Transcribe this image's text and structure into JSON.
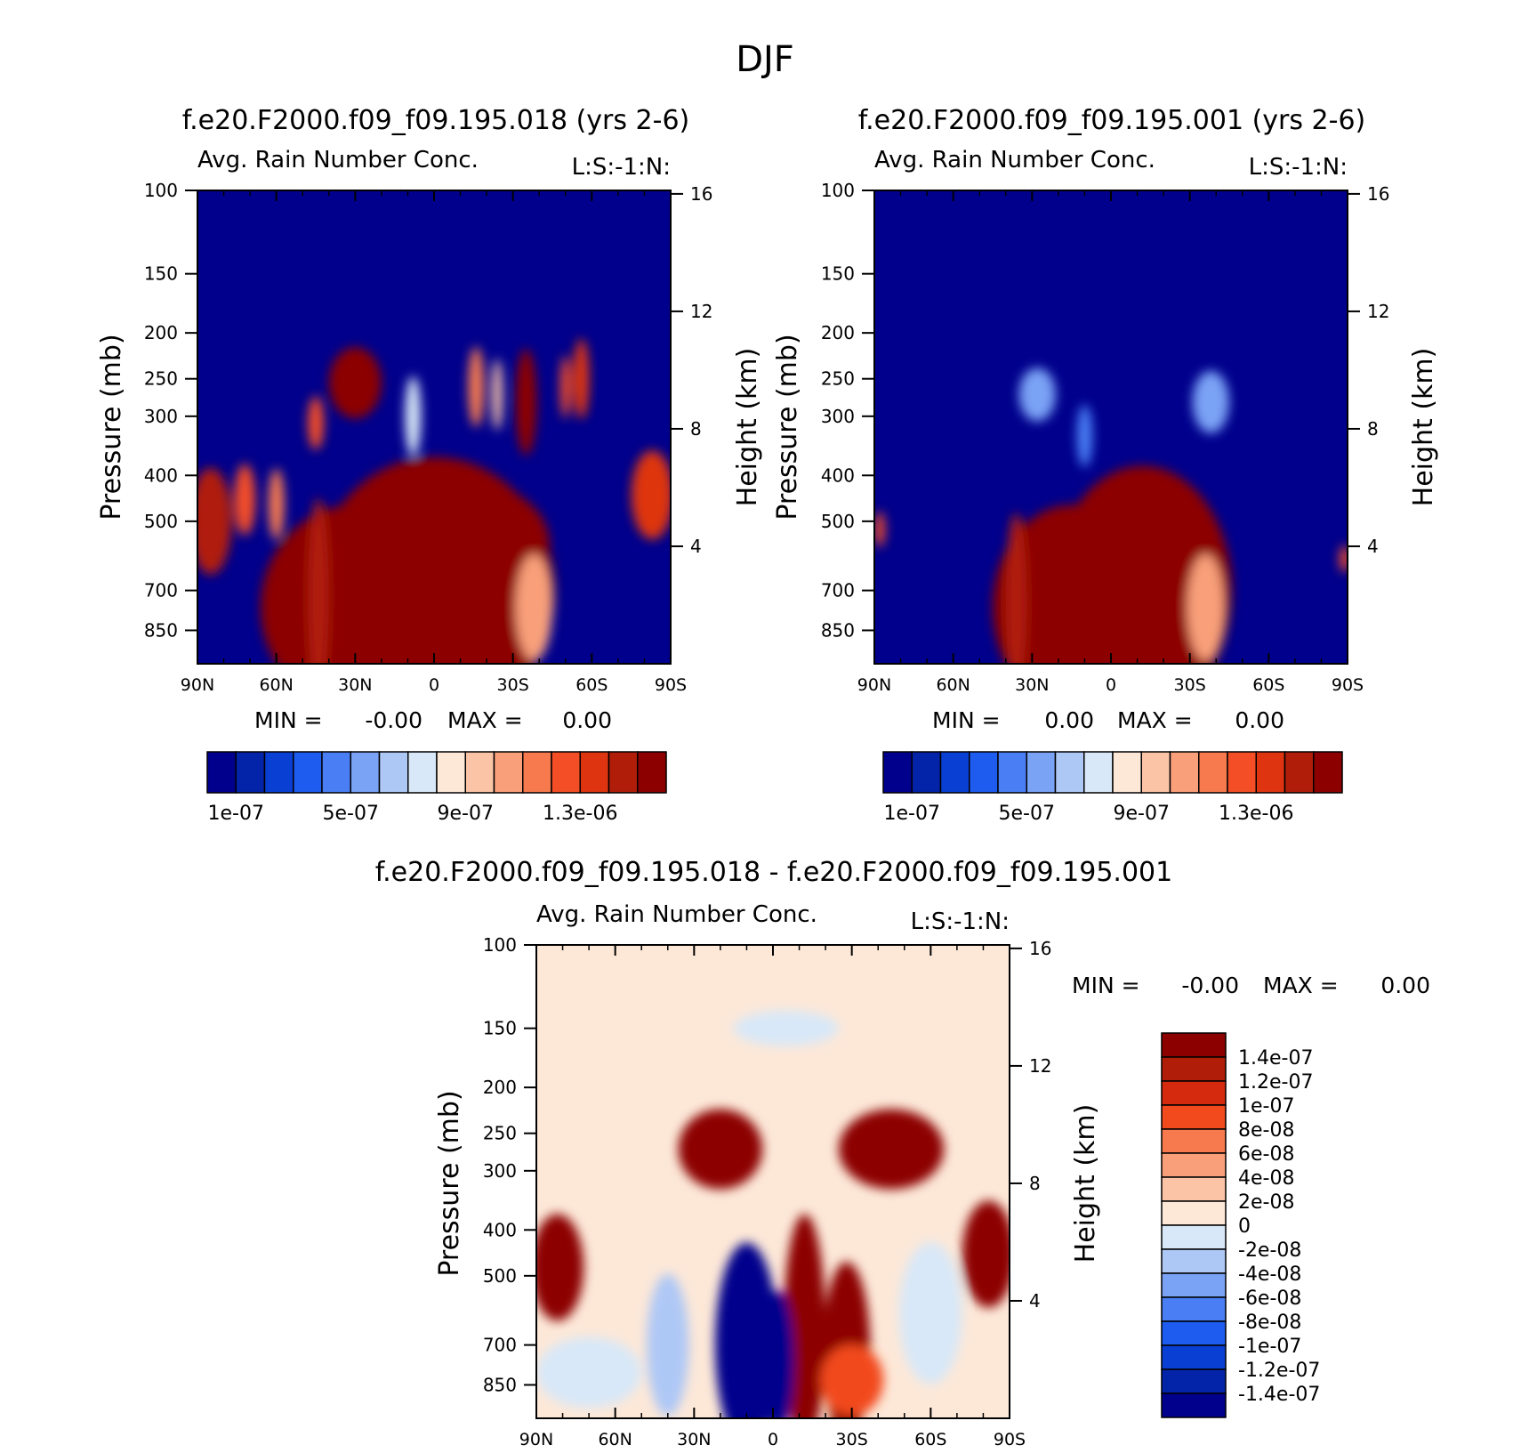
{
  "page_title": "DJF",
  "colors": {
    "seq": [
      "#00008c",
      "#0323a8",
      "#0a3fd4",
      "#1e5cf0",
      "#4a7ef5",
      "#7aa2f5",
      "#aec8f6",
      "#d8e8f8",
      "#fde8d8",
      "#fbc4a6",
      "#f9a07a",
      "#f77a4e",
      "#f44e26",
      "#de3410",
      "#b01e0a",
      "#8c0000"
    ],
    "div": [
      "#8c0000",
      "#b01e0a",
      "#d62a0e",
      "#f24a1c",
      "#f77a4e",
      "#f9a07a",
      "#fbc4a6",
      "#fde8d8",
      "#d8e8f8",
      "#aec8f6",
      "#7aa2f5",
      "#4a7ef5",
      "#1e5cf0",
      "#0a3fd4",
      "#0323a8",
      "#00008c"
    ]
  },
  "chart_data": [
    {
      "type": "heatmap",
      "title": "f.e20.F2000.f09_f09.195.018 (yrs 2-6)",
      "subtitle": "Avg. Rain Number Conc.",
      "tag": "L:S:-1:N:",
      "ylabel": "Pressure (mb)",
      "ylabel_right": "Height (km)",
      "x_ticks": [
        "90N",
        "60N",
        "30N",
        "0",
        "30S",
        "60S",
        "90S"
      ],
      "y_ticks": [
        "100",
        "150",
        "200",
        "250",
        "300",
        "400",
        "500",
        "700",
        "850"
      ],
      "y_right_ticks": [
        "16",
        "12",
        "8",
        "4"
      ],
      "x_range": [
        "90N",
        "90S"
      ],
      "y_range": [
        100,
        1000
      ],
      "y_scale": "log",
      "min_label": "MIN =",
      "min_value": "-0.00",
      "max_label": "MAX =",
      "max_value": "0.00",
      "colorbar_labels": [
        "1e-07",
        "5e-07",
        "9e-07",
        "1.3e-06"
      ],
      "background_level": 0,
      "blobs": [
        {
          "x": -30,
          "p": 760,
          "w": 36,
          "h": 230,
          "v": 15
        },
        {
          "x": 0,
          "p": 700,
          "w": 46,
          "h": 300,
          "v": 15
        },
        {
          "x": 14,
          "p": 560,
          "w": 30,
          "h": 140,
          "v": 15
        },
        {
          "x": -44,
          "p": 720,
          "w": 4,
          "h": 220,
          "v": 14
        },
        {
          "x": -30,
          "p": 255,
          "w": 10,
          "h": 80,
          "v": 15
        },
        {
          "x": -45,
          "p": 310,
          "w": 3,
          "h": 60,
          "v": 12
        },
        {
          "x": 35,
          "p": 280,
          "w": 4,
          "h": 120,
          "v": 15
        },
        {
          "x": 56,
          "p": 250,
          "w": 3,
          "h": 90,
          "v": 13
        },
        {
          "x": 50,
          "p": 260,
          "w": 2,
          "h": 70,
          "v": 12
        },
        {
          "x": 83,
          "p": 440,
          "w": 8,
          "h": 100,
          "v": 13
        },
        {
          "x": -85,
          "p": 500,
          "w": 8,
          "h": 120,
          "v": 14
        },
        {
          "x": -72,
          "p": 450,
          "w": 4,
          "h": 80,
          "v": 12
        },
        {
          "x": -60,
          "p": 460,
          "w": 3,
          "h": 80,
          "v": 11
        },
        {
          "x": 16,
          "p": 260,
          "w": 3,
          "h": 90,
          "v": 11
        },
        {
          "x": 24,
          "p": 270,
          "w": 2,
          "h": 80,
          "v": 9
        },
        {
          "x": -8,
          "p": 300,
          "w": 3,
          "h": 90,
          "v": 7
        },
        {
          "x": 38,
          "p": 760,
          "w": 7,
          "h": 120,
          "v": 10
        }
      ]
    },
    {
      "type": "heatmap",
      "title": "f.e20.F2000.f09_f09.195.001 (yrs 2-6)",
      "subtitle": "Avg. Rain Number Conc.",
      "tag": "L:S:-1:N:",
      "ylabel": "Pressure (mb)",
      "ylabel_right": "Height (km)",
      "x_ticks": [
        "90N",
        "60N",
        "30N",
        "0",
        "30S",
        "60S",
        "90S"
      ],
      "y_ticks": [
        "100",
        "150",
        "200",
        "250",
        "300",
        "400",
        "500",
        "700",
        "850"
      ],
      "y_right_ticks": [
        "16",
        "12",
        "8",
        "4"
      ],
      "x_range": [
        "90N",
        "90S"
      ],
      "y_range": [
        100,
        1000
      ],
      "y_scale": "log",
      "min_label": "MIN =",
      "min_value": "0.00",
      "max_label": "MAX =",
      "max_value": "0.00",
      "colorbar_labels": [
        "1e-07",
        "5e-07",
        "9e-07",
        "1.3e-06"
      ],
      "background_level": 0,
      "blobs": [
        {
          "x": -15,
          "p": 760,
          "w": 30,
          "h": 230,
          "v": 15
        },
        {
          "x": 12,
          "p": 700,
          "w": 34,
          "h": 280,
          "v": 15
        },
        {
          "x": 10,
          "p": 520,
          "w": 28,
          "h": 90,
          "v": 15
        },
        {
          "x": -36,
          "p": 740,
          "w": 4,
          "h": 200,
          "v": 14
        },
        {
          "x": -28,
          "p": 270,
          "w": 7,
          "h": 60,
          "v": 5
        },
        {
          "x": 38,
          "p": 280,
          "w": 7,
          "h": 70,
          "v": 5
        },
        {
          "x": -10,
          "p": 330,
          "w": 3,
          "h": 70,
          "v": 4
        },
        {
          "x": 36,
          "p": 760,
          "w": 7,
          "h": 120,
          "v": 10
        },
        {
          "x": -88,
          "p": 520,
          "w": 2,
          "h": 40,
          "v": 12
        },
        {
          "x": 89,
          "p": 600,
          "w": 2,
          "h": 30,
          "v": 12
        }
      ]
    },
    {
      "type": "heatmap",
      "title": "f.e20.F2000.f09_f09.195.018 - f.e20.F2000.f09_f09.195.001",
      "subtitle": "Avg. Rain Number Conc.",
      "tag": "L:S:-1:N:",
      "ylabel": "Pressure (mb)",
      "ylabel_right": "Height (km)",
      "x_ticks": [
        "90N",
        "60N",
        "30N",
        "0",
        "30S",
        "60S",
        "90S"
      ],
      "y_ticks": [
        "100",
        "150",
        "200",
        "250",
        "300",
        "400",
        "500",
        "700",
        "850"
      ],
      "y_right_ticks": [
        "16",
        "12",
        "8",
        "4"
      ],
      "x_range": [
        "90N",
        "90S"
      ],
      "y_range": [
        100,
        1000
      ],
      "y_scale": "log",
      "min_label": "MIN =",
      "min_value": "-0.00",
      "max_label": "MAX =",
      "max_value": "0.00",
      "colorbar_labels": [
        "1.4e-07",
        "1.2e-07",
        "1e-07",
        "8e-08",
        "6e-08",
        "4e-08",
        "2e-08",
        "0",
        "-2e-08",
        "-4e-08",
        "-6e-08",
        "-8e-08",
        "-1e-07",
        "-1.2e-07",
        "-1.4e-07"
      ],
      "background_level": 7,
      "blobs": [
        {
          "x": -20,
          "p": 270,
          "w": 16,
          "h": 90,
          "v": 0
        },
        {
          "x": 45,
          "p": 270,
          "w": 20,
          "h": 90,
          "v": 0
        },
        {
          "x": -82,
          "p": 480,
          "w": 10,
          "h": 120,
          "v": 0
        },
        {
          "x": 82,
          "p": 450,
          "w": 10,
          "h": 120,
          "v": 0
        },
        {
          "x": -10,
          "p": 700,
          "w": 12,
          "h": 230,
          "v": 15
        },
        {
          "x": 12,
          "p": 650,
          "w": 8,
          "h": 260,
          "v": 0
        },
        {
          "x": 28,
          "p": 720,
          "w": 9,
          "h": 200,
          "v": 0
        },
        {
          "x": 2,
          "p": 760,
          "w": 6,
          "h": 160,
          "v": 15
        },
        {
          "x": -40,
          "p": 700,
          "w": 8,
          "h": 160,
          "v": 9
        },
        {
          "x": 30,
          "p": 830,
          "w": 12,
          "h": 80,
          "v": 3
        },
        {
          "x": 5,
          "p": 150,
          "w": 20,
          "h": 40,
          "v": 8
        },
        {
          "x": 60,
          "p": 600,
          "w": 12,
          "h": 160,
          "v": 8
        },
        {
          "x": -70,
          "p": 800,
          "w": 20,
          "h": 80,
          "v": 8
        }
      ]
    }
  ]
}
